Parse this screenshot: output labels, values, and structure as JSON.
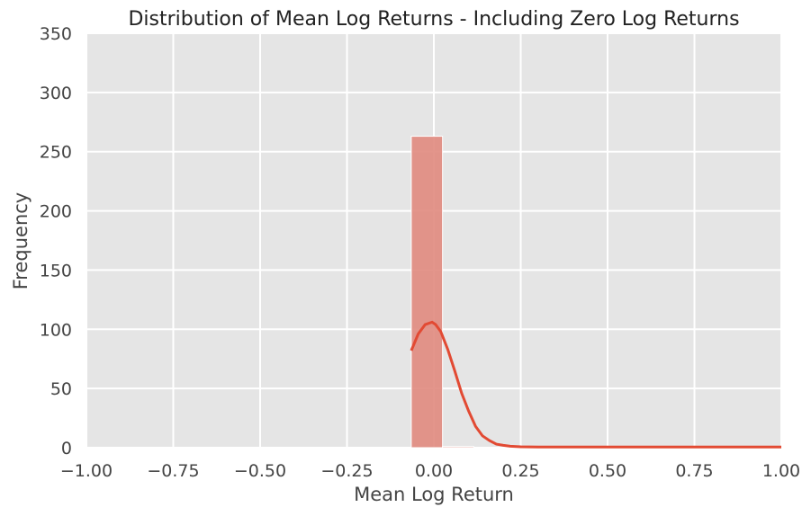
{
  "chart_data": {
    "type": "histogram",
    "title": "Distribution of Mean Log Returns - Including Zero Log Returns",
    "xlabel": "Mean Log Return",
    "ylabel": "Frequency",
    "xlim": [
      -1.0,
      1.0
    ],
    "ylim": [
      0,
      350
    ],
    "xticks": [
      -1.0,
      -0.75,
      -0.5,
      -0.25,
      0.0,
      0.25,
      0.5,
      0.75,
      1.0
    ],
    "xtick_labels": [
      "−1.00",
      "−0.75",
      "−0.50",
      "−0.25",
      "0.00",
      "0.25",
      "0.50",
      "0.75",
      "1.00"
    ],
    "yticks": [
      0,
      50,
      100,
      150,
      200,
      250,
      300,
      350
    ],
    "ytick_labels": [
      "0",
      "50",
      "100",
      "150",
      "200",
      "250",
      "300",
      "350"
    ],
    "grid": true,
    "bins": [
      {
        "x0": -0.065,
        "x1": 0.025,
        "count": 263
      },
      {
        "x0": 0.025,
        "x1": 0.115,
        "count": 1
      },
      {
        "x0": 0.115,
        "x1": 0.205,
        "count": 0
      },
      {
        "x0": 0.205,
        "x1": 0.295,
        "count": 0
      },
      {
        "x0": 0.295,
        "x1": 0.385,
        "count": 0
      },
      {
        "x0": 0.385,
        "x1": 0.475,
        "count": 0
      },
      {
        "x0": 0.475,
        "x1": 0.565,
        "count": 0
      },
      {
        "x0": 0.565,
        "x1": 0.655,
        "count": 0
      },
      {
        "x0": 0.655,
        "x1": 0.745,
        "count": 0
      },
      {
        "x0": 0.745,
        "x1": 0.835,
        "count": 0
      },
      {
        "x0": 0.835,
        "x1": 0.925,
        "count": 0
      },
      {
        "x0": 0.925,
        "x1": 1.015,
        "count": 1
      }
    ],
    "kde": {
      "x": [
        -0.065,
        -0.045,
        -0.025,
        -0.005,
        0.005,
        0.02,
        0.04,
        0.06,
        0.08,
        0.1,
        0.12,
        0.14,
        0.16,
        0.18,
        0.2,
        0.22,
        0.25,
        0.3,
        0.4,
        0.6,
        0.8,
        1.0
      ],
      "y": [
        82,
        96,
        104,
        106,
        104,
        98,
        83,
        65,
        46,
        31,
        18,
        10,
        6,
        3,
        2,
        1.2,
        0.8,
        0.6,
        0.6,
        0.6,
        0.6,
        0.6
      ]
    },
    "colors": {
      "background": "#e5e5e5",
      "grid": "#ffffff",
      "bar_fill": "#e08a7e",
      "bar_stroke": "#ffffff",
      "kde_line": "#e24a33"
    }
  }
}
